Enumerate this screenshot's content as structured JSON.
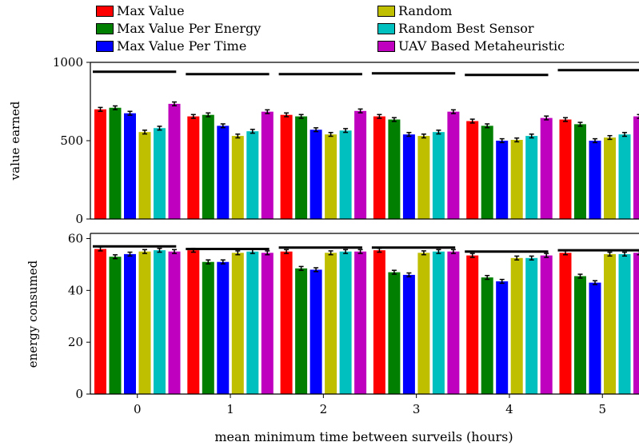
{
  "chart_data": {
    "type": "bar",
    "xlabel": "mean minimum time between surveils (hours)",
    "categories": [
      "0",
      "1",
      "2",
      "3",
      "4",
      "5"
    ],
    "colors": [
      "#ff0000",
      "#007f00",
      "#0000ff",
      "#bfbf00",
      "#00bfbf",
      "#bf00bf"
    ],
    "legend": {
      "placement": "top",
      "entries": [
        "Max Value",
        "Max Value Per Energy",
        "Max Value Per Time",
        "Random",
        "Random Best Sensor",
        "UAV Based Metaheuristic"
      ]
    },
    "panels": [
      {
        "ylabel": "value earned",
        "ylim": [
          0,
          1000
        ],
        "yticks": [
          "0",
          "500",
          "1000"
        ],
        "reference": [
          940,
          925,
          925,
          930,
          920,
          950
        ],
        "series": [
          {
            "name": "Max Value",
            "values": [
              700,
              655,
              665,
              655,
              625,
              635
            ]
          },
          {
            "name": "Max Value Per Energy",
            "values": [
              710,
              665,
              655,
              635,
              595,
              605
            ]
          },
          {
            "name": "Max Value Per Time",
            "values": [
              675,
              595,
              570,
              540,
              500,
              500
            ]
          },
          {
            "name": "Random",
            "values": [
              555,
              530,
              540,
              530,
              505,
              520
            ]
          },
          {
            "name": "Random Best Sensor",
            "values": [
              580,
              560,
              565,
              555,
              530,
              540
            ]
          },
          {
            "name": "UAV Based Metaheuristic",
            "values": [
              735,
              685,
              690,
              685,
              645,
              655
            ]
          }
        ]
      },
      {
        "ylabel": "energy consumed",
        "ylim": [
          0,
          62
        ],
        "yticks": [
          "0",
          "20",
          "40",
          "60"
        ],
        "reference": [
          57,
          56,
          56.5,
          56.5,
          55,
          55.5
        ],
        "series": [
          {
            "name": "Max Value",
            "values": [
              56,
              55.5,
              55,
              55.5,
              53.5,
              54.5
            ]
          },
          {
            "name": "Max Value Per Energy",
            "values": [
              53,
              51,
              48.5,
              47,
              45,
              45.5
            ]
          },
          {
            "name": "Max Value Per Time",
            "values": [
              54,
              51,
              48,
              46,
              43.5,
              43
            ]
          },
          {
            "name": "Random",
            "values": [
              55,
              54.5,
              54.5,
              54.5,
              52.5,
              54
            ]
          },
          {
            "name": "Random Best Sensor",
            "values": [
              55.5,
              55,
              55,
              55,
              52.5,
              54
            ]
          },
          {
            "name": "UAV Based Metaheuristic",
            "values": [
              55,
              54.5,
              55,
              55,
              53.5,
              54.5
            ]
          }
        ]
      }
    ]
  }
}
